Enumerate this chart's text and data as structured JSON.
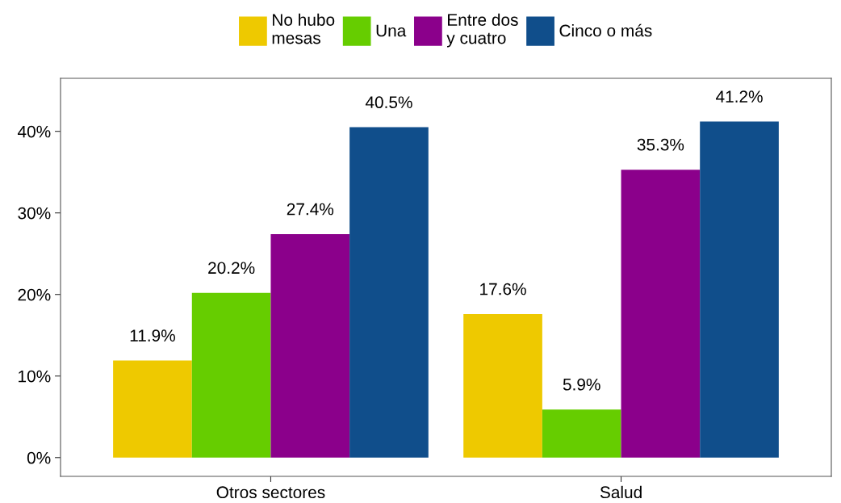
{
  "chart_data": {
    "type": "bar",
    "categories": [
      "Otros sectores",
      "Salud"
    ],
    "series": [
      {
        "name": "No hubo\nmesas",
        "color": "#eec900",
        "values": [
          11.9,
          17.6
        ],
        "value_labels": [
          "11.9%",
          "17.6%"
        ]
      },
      {
        "name": "Una",
        "color": "#66cd00",
        "values": [
          20.2,
          5.9
        ],
        "value_labels": [
          "20.2%",
          "5.9%"
        ]
      },
      {
        "name": "Entre dos\ny cuatro",
        "color": "#8b008b",
        "values": [
          27.4,
          35.3
        ],
        "value_labels": [
          "27.4%",
          "35.3%"
        ]
      },
      {
        "name": "Cinco o más",
        "color": "#104e8b",
        "values": [
          40.5,
          41.2
        ],
        "value_labels": [
          "40.5%",
          "41.2%"
        ]
      }
    ],
    "ylim": [
      -2.3,
      46.5
    ],
    "yticks": [
      {
        "value": 0,
        "label": "0%"
      },
      {
        "value": 10,
        "label": "10%"
      },
      {
        "value": 20,
        "label": "20%"
      },
      {
        "value": 30,
        "label": "30%"
      },
      {
        "value": 40,
        "label": "40%"
      }
    ],
    "grid": false,
    "legend": "top"
  }
}
